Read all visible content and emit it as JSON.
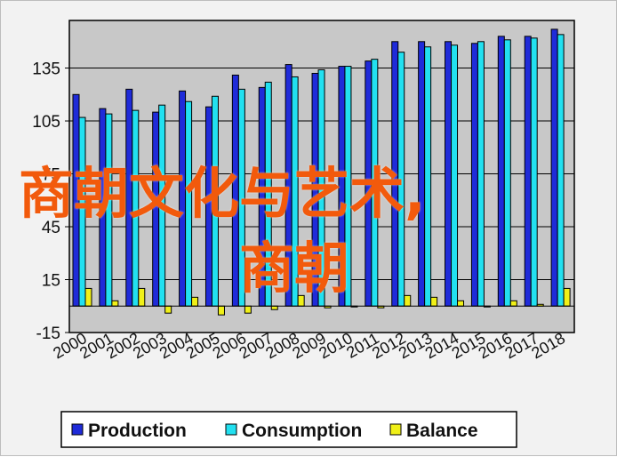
{
  "chart_data": {
    "type": "bar",
    "categories": [
      "2000",
      "2001",
      "2002",
      "2003",
      "2004",
      "2005",
      "2006",
      "2007",
      "2008",
      "2009",
      "2010",
      "2011",
      "2012",
      "2013",
      "2014",
      "2015",
      "2016",
      "2017",
      "2018"
    ],
    "series": [
      {
        "name": "Production",
        "color": "#1f2bd9",
        "values": [
          120,
          112,
          123,
          110,
          122,
          113,
          131,
          124,
          137,
          132,
          136,
          139,
          150,
          150,
          150,
          149,
          153,
          153,
          157
        ]
      },
      {
        "name": "Consumption",
        "color": "#22e0f0",
        "values": [
          107,
          109,
          111,
          114,
          116,
          119,
          123,
          127,
          130,
          134,
          136,
          140,
          144,
          147,
          148,
          150,
          151,
          152,
          154
        ]
      },
      {
        "name": "Balance",
        "color": "#f0f018",
        "values": [
          10,
          3,
          10,
          -4,
          5,
          -5,
          -4,
          -2,
          6,
          -1,
          0,
          -1,
          6,
          5,
          3,
          0,
          3,
          1,
          10
        ]
      }
    ],
    "yticks": [
      -15,
      15,
      45,
      75,
      105,
      135
    ],
    "ylim": [
      -15,
      162
    ],
    "grid": true,
    "legend_position": "bottom"
  },
  "overlay": {
    "line1": "商朝文化与艺术,",
    "line2": "商朝",
    "color": "#f25a0c"
  }
}
